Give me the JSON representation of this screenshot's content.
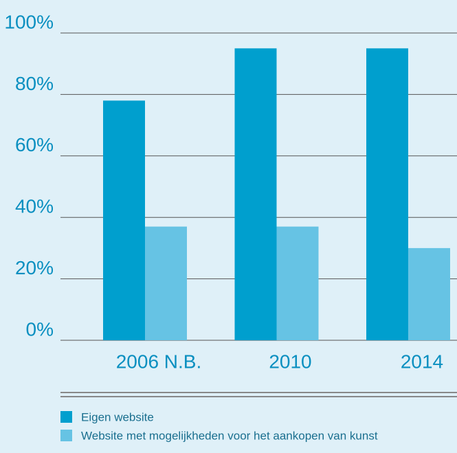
{
  "chart_data": {
    "type": "bar",
    "categories": [
      "2006 N.B.",
      "2010",
      "2014"
    ],
    "series": [
      {
        "name": "Eigen website",
        "color": "#009fce",
        "values": [
          78,
          95,
          95
        ]
      },
      {
        "name": "Website met mogelijkheden voor het aankopen van kunst",
        "color": "#66c3e4",
        "values": [
          37,
          37,
          30
        ]
      }
    ],
    "ylim": [
      0,
      100
    ],
    "yticks": [
      {
        "value": 0,
        "label": "0%"
      },
      {
        "value": 20,
        "label": "20%"
      },
      {
        "value": 40,
        "label": "40%"
      },
      {
        "value": 60,
        "label": "60%"
      },
      {
        "value": 80,
        "label": "80%"
      },
      {
        "value": 100,
        "label": "100%"
      }
    ],
    "grid": true
  }
}
